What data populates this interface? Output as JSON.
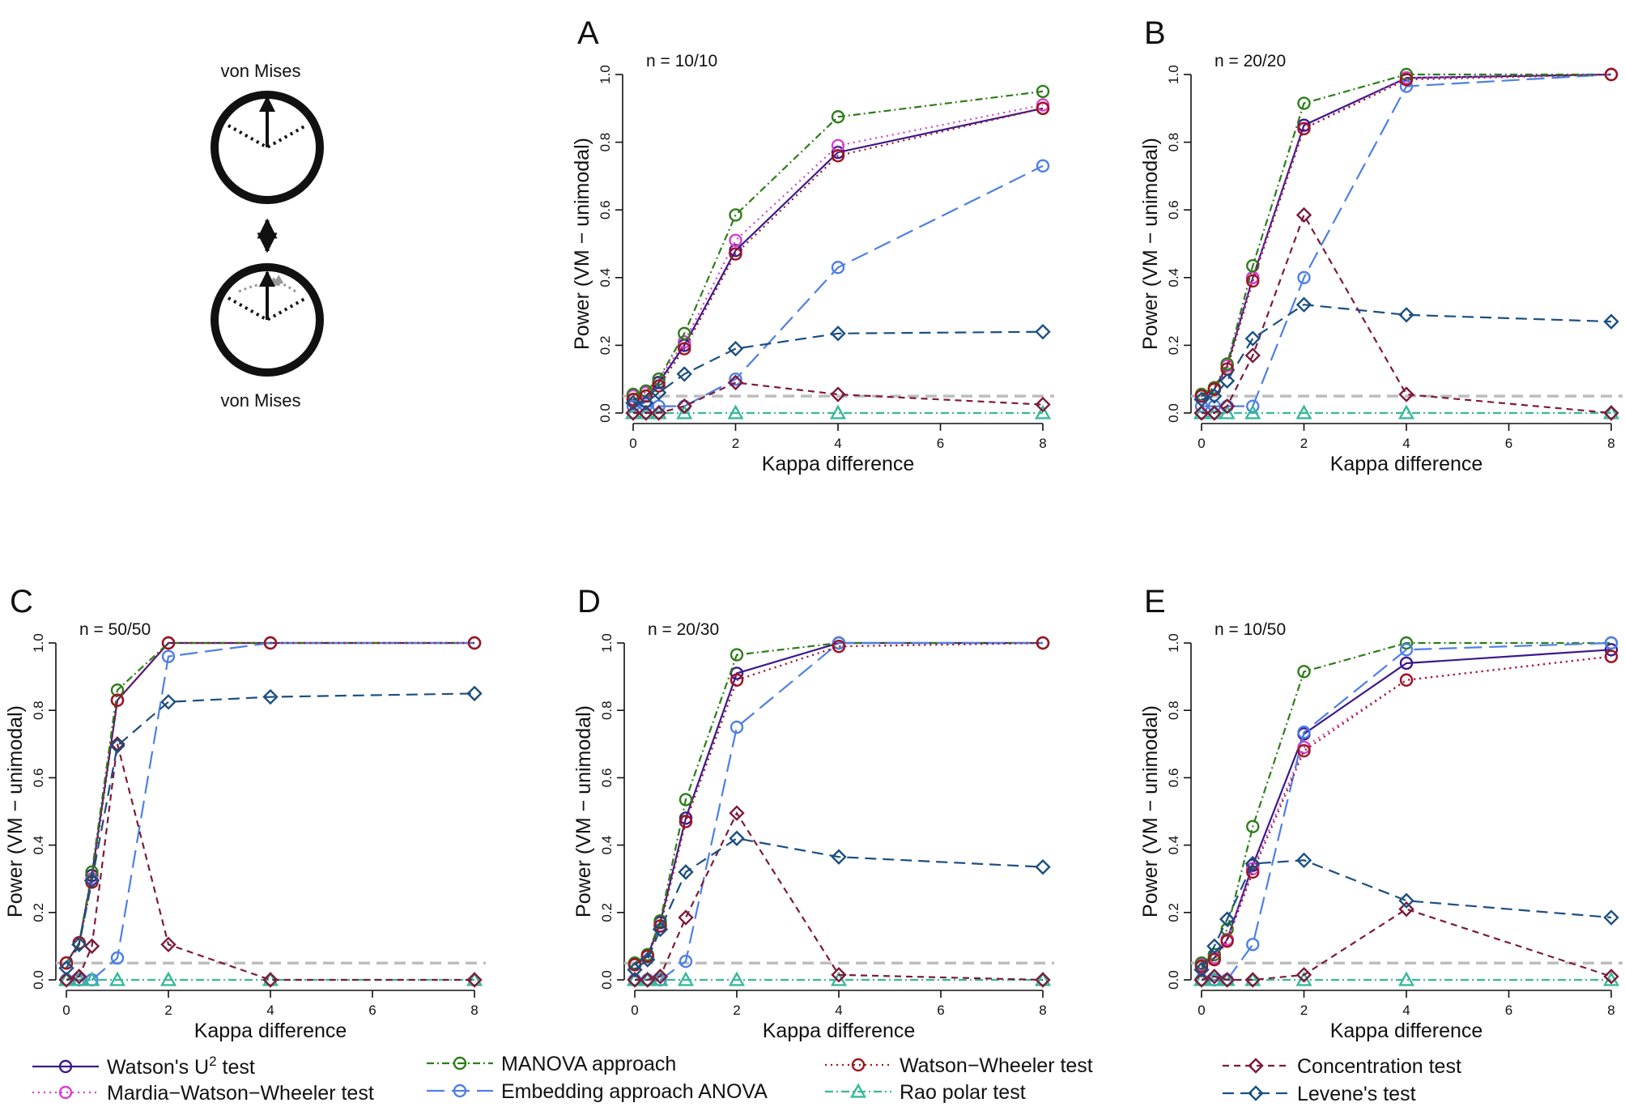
{
  "diagram": {
    "top_label": "von Mises",
    "bottom_label": "von Mises"
  },
  "legend": {
    "entries": [
      {
        "key": "watson",
        "label": "Watson's U",
        "sup": "2",
        "suffix": "  test"
      },
      {
        "key": "mww",
        "label": "Mardia−Watson−Wheeler test"
      },
      {
        "key": "manova",
        "label": "MANOVA approach"
      },
      {
        "key": "embed",
        "label": "Embedding approach ANOVA"
      },
      {
        "key": "ww",
        "label": "Watson−Wheeler test"
      },
      {
        "key": "rao",
        "label": "Rao polar test"
      },
      {
        "key": "conc",
        "label": "Concentration test"
      },
      {
        "key": "levene",
        "label": "Levene's test"
      }
    ]
  },
  "styles": {
    "watson": {
      "color": "#3b1a8c",
      "dash": "",
      "marker": "circle"
    },
    "mww": {
      "color": "#d63fd0",
      "dash": "2,5",
      "marker": "circle"
    },
    "manova": {
      "color": "#2e7d1a",
      "dash": "9,4,2,4",
      "marker": "circle"
    },
    "embed": {
      "color": "#4d7fe6",
      "dash": "22,9",
      "marker": "circle"
    },
    "ww": {
      "color": "#a0141e",
      "dash": "2,5",
      "marker": "circle"
    },
    "rao": {
      "color": "#38b89a",
      "dash": "10,4,2,4",
      "marker": "triangle"
    },
    "conc": {
      "color": "#7d1a3c",
      "dash": "8,6",
      "marker": "diamond"
    },
    "levene": {
      "color": "#1b4f82",
      "dash": "14,8",
      "marker": "diamond"
    },
    "reference_line_color": "#bdbdbd"
  },
  "chart_data": [
    {
      "panel": "A",
      "type": "line",
      "annotation": "n = 10/10",
      "xlabel": "Kappa difference",
      "ylabel": "Power (VM − unimodal)",
      "xlim": [
        0,
        8
      ],
      "ylim": [
        0,
        1
      ],
      "xticks": [
        "0",
        "2",
        "4",
        "6",
        "8"
      ],
      "yticks": [
        "0.0",
        "0.2",
        "0.4",
        "0.6",
        "0.8",
        "1.0"
      ],
      "reference_line": 0.05,
      "x": [
        0,
        0.25,
        0.5,
        1,
        2,
        4,
        8
      ],
      "series": [
        {
          "key": "watson",
          "values": [
            0.04,
            0.05,
            0.09,
            0.2,
            0.48,
            0.77,
            0.9
          ]
        },
        {
          "key": "mww",
          "values": [
            0.05,
            0.06,
            0.1,
            0.21,
            0.51,
            0.79,
            0.91
          ]
        },
        {
          "key": "manova",
          "values": [
            0.055,
            0.065,
            0.1,
            0.235,
            0.585,
            0.875,
            0.95
          ]
        },
        {
          "key": "embed",
          "values": [
            0.02,
            0.02,
            0.02,
            0.02,
            0.1,
            0.43,
            0.73
          ]
        },
        {
          "key": "ww",
          "values": [
            0.04,
            0.05,
            0.08,
            0.19,
            0.47,
            0.76,
            0.9
          ]
        },
        {
          "key": "rao",
          "values": [
            0.0,
            0.0,
            0.0,
            0.0,
            0.0,
            0.0,
            0.0
          ]
        },
        {
          "key": "conc",
          "values": [
            0.0,
            0.0,
            0.0,
            0.02,
            0.09,
            0.055,
            0.025
          ]
        },
        {
          "key": "levene",
          "values": [
            0.03,
            0.03,
            0.06,
            0.115,
            0.19,
            0.235,
            0.24
          ]
        }
      ]
    },
    {
      "panel": "B",
      "type": "line",
      "annotation": "n = 20/20",
      "xlabel": "Kappa difference",
      "ylabel": "Power (VM − unimodal)",
      "xlim": [
        0,
        8
      ],
      "ylim": [
        0,
        1
      ],
      "xticks": [
        "0",
        "2",
        "4",
        "6",
        "8"
      ],
      "yticks": [
        "0.0",
        "0.2",
        "0.4",
        "0.6",
        "0.8",
        "1.0"
      ],
      "reference_line": 0.05,
      "x": [
        0,
        0.25,
        0.5,
        1,
        2,
        4,
        8
      ],
      "series": [
        {
          "key": "watson",
          "values": [
            0.05,
            0.07,
            0.14,
            0.4,
            0.85,
            0.99,
            1.0
          ]
        },
        {
          "key": "mww",
          "values": [
            0.05,
            0.07,
            0.14,
            0.4,
            0.84,
            0.99,
            1.0
          ]
        },
        {
          "key": "manova",
          "values": [
            0.055,
            0.075,
            0.145,
            0.435,
            0.915,
            1.0,
            1.0
          ]
        },
        {
          "key": "embed",
          "values": [
            0.02,
            0.02,
            0.02,
            0.02,
            0.4,
            0.965,
            1.0
          ]
        },
        {
          "key": "ww",
          "values": [
            0.05,
            0.07,
            0.13,
            0.39,
            0.84,
            0.985,
            1.0
          ]
        },
        {
          "key": "rao",
          "values": [
            0.0,
            0.0,
            0.0,
            0.0,
            0.0,
            0.0,
            0.0
          ]
        },
        {
          "key": "conc",
          "values": [
            0.0,
            0.0,
            0.02,
            0.17,
            0.585,
            0.055,
            0.0
          ]
        },
        {
          "key": "levene",
          "values": [
            0.04,
            0.05,
            0.095,
            0.22,
            0.32,
            0.29,
            0.27
          ]
        }
      ]
    },
    {
      "panel": "C",
      "type": "line",
      "annotation": "n = 50/50",
      "xlabel": "Kappa difference",
      "ylabel": "Power (VM − unimodal)",
      "xlim": [
        0,
        8
      ],
      "ylim": [
        0,
        1
      ],
      "xticks": [
        "0",
        "2",
        "4",
        "6",
        "8"
      ],
      "yticks": [
        "0.0",
        "0.2",
        "0.4",
        "0.6",
        "0.8",
        "1.0"
      ],
      "reference_line": 0.05,
      "x": [
        0,
        0.25,
        0.5,
        1,
        2,
        4,
        8
      ],
      "series": [
        {
          "key": "watson",
          "values": [
            0.05,
            0.11,
            0.31,
            0.83,
            1.0,
            1.0,
            1.0
          ]
        },
        {
          "key": "mww",
          "values": [
            0.05,
            0.11,
            0.3,
            0.83,
            1.0,
            1.0,
            1.0
          ]
        },
        {
          "key": "manova",
          "values": [
            0.05,
            0.11,
            0.32,
            0.86,
            1.0,
            1.0,
            1.0
          ]
        },
        {
          "key": "embed",
          "values": [
            0.0,
            0.0,
            0.0,
            0.065,
            0.96,
            1.0,
            1.0
          ]
        },
        {
          "key": "ww",
          "values": [
            0.05,
            0.11,
            0.29,
            0.83,
            1.0,
            1.0,
            1.0
          ]
        },
        {
          "key": "rao",
          "values": [
            0.0,
            0.0,
            0.0,
            0.0,
            0.0,
            0.0,
            0.0
          ]
        },
        {
          "key": "conc",
          "values": [
            0.0,
            0.01,
            0.1,
            0.7,
            0.105,
            0.0,
            0.0
          ]
        },
        {
          "key": "levene",
          "values": [
            0.035,
            0.105,
            0.295,
            0.695,
            0.825,
            0.84,
            0.85
          ]
        }
      ]
    },
    {
      "panel": "D",
      "type": "line",
      "annotation": "n = 20/30",
      "xlabel": "Kappa difference",
      "ylabel": "Power (VM − unimodal)",
      "xlim": [
        0,
        8
      ],
      "ylim": [
        0,
        1
      ],
      "xticks": [
        "0",
        "2",
        "4",
        "6",
        "8"
      ],
      "yticks": [
        "0.0",
        "0.2",
        "0.4",
        "0.6",
        "0.8",
        "1.0"
      ],
      "reference_line": 0.05,
      "x": [
        0,
        0.25,
        0.5,
        1,
        2,
        4,
        8
      ],
      "series": [
        {
          "key": "watson",
          "values": [
            0.045,
            0.07,
            0.17,
            0.48,
            0.91,
            1.0,
            1.0
          ]
        },
        {
          "key": "mww",
          "values": [
            0.045,
            0.07,
            0.16,
            0.47,
            0.89,
            0.99,
            1.0
          ]
        },
        {
          "key": "manova",
          "values": [
            0.05,
            0.075,
            0.175,
            0.535,
            0.965,
            1.0,
            1.0
          ]
        },
        {
          "key": "embed",
          "values": [
            0.0,
            0.0,
            0.0,
            0.055,
            0.75,
            1.0,
            1.0
          ]
        },
        {
          "key": "ww",
          "values": [
            0.045,
            0.07,
            0.16,
            0.47,
            0.89,
            0.99,
            1.0
          ]
        },
        {
          "key": "rao",
          "values": [
            0.0,
            0.0,
            0.0,
            0.0,
            0.0,
            0.0,
            0.0
          ]
        },
        {
          "key": "conc",
          "values": [
            0.0,
            0.0,
            0.01,
            0.185,
            0.495,
            0.015,
            0.0
          ]
        },
        {
          "key": "levene",
          "values": [
            0.03,
            0.06,
            0.15,
            0.32,
            0.42,
            0.365,
            0.335
          ]
        }
      ]
    },
    {
      "panel": "E",
      "type": "line",
      "annotation": "n = 10/50",
      "xlabel": "Kappa difference",
      "ylabel": "Power (VM − unimodal)",
      "xlim": [
        0,
        8
      ],
      "ylim": [
        0,
        1
      ],
      "xticks": [
        "0",
        "2",
        "4",
        "6",
        "8"
      ],
      "yticks": [
        "0.0",
        "0.2",
        "0.4",
        "0.6",
        "0.8",
        "1.0"
      ],
      "reference_line": 0.05,
      "x": [
        0,
        0.25,
        0.5,
        1,
        2,
        4,
        8
      ],
      "series": [
        {
          "key": "watson",
          "values": [
            0.045,
            0.065,
            0.12,
            0.34,
            0.73,
            0.94,
            0.98
          ]
        },
        {
          "key": "mww",
          "values": [
            0.045,
            0.065,
            0.12,
            0.33,
            0.69,
            0.89,
            0.96
          ]
        },
        {
          "key": "manova",
          "values": [
            0.05,
            0.075,
            0.15,
            0.455,
            0.915,
            1.0,
            1.0
          ]
        },
        {
          "key": "embed",
          "values": [
            0.0,
            0.0,
            0.0,
            0.105,
            0.735,
            0.98,
            1.0
          ]
        },
        {
          "key": "ww",
          "values": [
            0.04,
            0.06,
            0.115,
            0.32,
            0.68,
            0.89,
            0.96
          ]
        },
        {
          "key": "rao",
          "values": [
            0.0,
            0.0,
            0.0,
            0.0,
            0.0,
            0.0,
            0.0
          ]
        },
        {
          "key": "conc",
          "values": [
            0.0,
            0.01,
            0.0,
            0.0,
            0.015,
            0.21,
            0.01
          ]
        },
        {
          "key": "levene",
          "values": [
            0.03,
            0.1,
            0.18,
            0.345,
            0.355,
            0.235,
            0.185
          ]
        }
      ]
    }
  ]
}
